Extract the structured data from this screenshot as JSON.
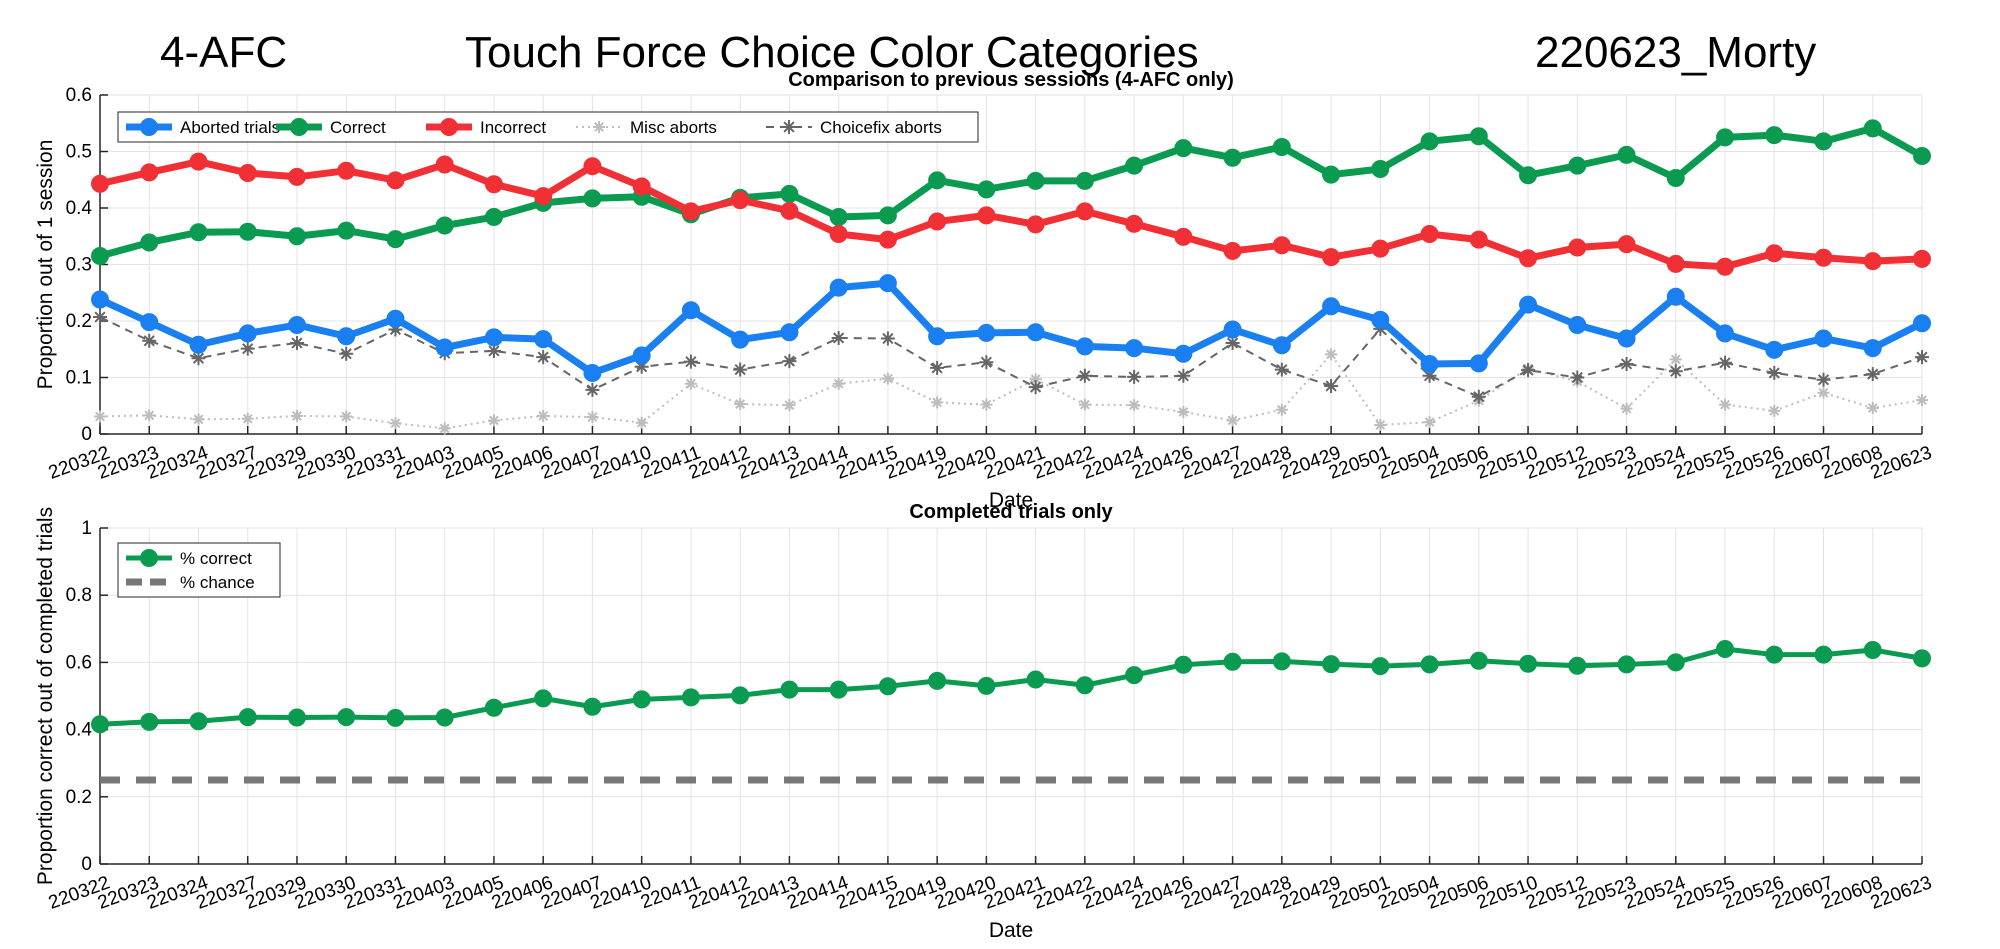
{
  "header": {
    "left": "4-AFC",
    "center": "Touch Force Choice Color Categories",
    "right": "220623_Morty"
  },
  "colors": {
    "aborted": "#1a7ff0",
    "correct": "#0a9b50",
    "incorrect": "#f03035",
    "misc": "#bdbdbd",
    "choicefix": "#666666",
    "chance": "#777777",
    "grid": "#e3e3e3"
  },
  "chart_data": [
    {
      "type": "line",
      "title": "Comparison to previous sessions (4-AFC only)",
      "xlabel": "Date",
      "ylabel": "Proportion out of 1 session",
      "ylim": [
        0,
        0.6
      ],
      "yticks": [
        "0",
        "0.1",
        "0.2",
        "0.3",
        "0.4",
        "0.5",
        "0.6"
      ],
      "grid": true,
      "legend_position": "top-left, horizontal",
      "categories": [
        "220322",
        "220323",
        "220324",
        "220327",
        "220329",
        "220330",
        "220331",
        "220403",
        "220405",
        "220406",
        "220407",
        "220410",
        "220411",
        "220412",
        "220413",
        "220414",
        "220415",
        "220419",
        "220420",
        "220421",
        "220422",
        "220424",
        "220426",
        "220427",
        "220428",
        "220429",
        "220501",
        "220504",
        "220506",
        "220510",
        "220512",
        "220523",
        "220524",
        "220525",
        "220526",
        "220607",
        "220608",
        "220623"
      ],
      "series": [
        {
          "name": "Aborted trials",
          "values": [
            0.238,
            0.198,
            0.158,
            0.178,
            0.193,
            0.173,
            0.204,
            0.153,
            0.171,
            0.168,
            0.108,
            0.139,
            0.219,
            0.167,
            0.18,
            0.259,
            0.267,
            0.173,
            0.179,
            0.18,
            0.155,
            0.152,
            0.142,
            0.185,
            0.157,
            0.226,
            0.202,
            0.124,
            0.125,
            0.229,
            0.193,
            0.169,
            0.243,
            0.178,
            0.149,
            0.169,
            0.152,
            0.196
          ]
        },
        {
          "name": "Correct",
          "values": [
            0.315,
            0.339,
            0.357,
            0.358,
            0.35,
            0.36,
            0.345,
            0.369,
            0.384,
            0.409,
            0.417,
            0.42,
            0.389,
            0.418,
            0.425,
            0.384,
            0.387,
            0.449,
            0.433,
            0.448,
            0.448,
            0.475,
            0.506,
            0.489,
            0.508,
            0.459,
            0.469,
            0.518,
            0.527,
            0.458,
            0.475,
            0.494,
            0.453,
            0.525,
            0.529,
            0.518,
            0.541,
            0.492
          ]
        },
        {
          "name": "Incorrect",
          "values": [
            0.443,
            0.463,
            0.482,
            0.462,
            0.455,
            0.466,
            0.449,
            0.477,
            0.442,
            0.421,
            0.474,
            0.438,
            0.394,
            0.414,
            0.395,
            0.354,
            0.344,
            0.376,
            0.387,
            0.371,
            0.394,
            0.372,
            0.349,
            0.324,
            0.334,
            0.313,
            0.328,
            0.354,
            0.344,
            0.311,
            0.33,
            0.336,
            0.301,
            0.296,
            0.32,
            0.312,
            0.306,
            0.31
          ]
        },
        {
          "name": "Misc aborts",
          "values": [
            0.031,
            0.033,
            0.026,
            0.027,
            0.032,
            0.031,
            0.019,
            0.01,
            0.024,
            0.032,
            0.03,
            0.02,
            0.089,
            0.053,
            0.051,
            0.089,
            0.098,
            0.056,
            0.052,
            0.097,
            0.052,
            0.051,
            0.039,
            0.024,
            0.043,
            0.141,
            0.016,
            0.021,
            0.059,
            0.116,
            0.093,
            0.045,
            0.132,
            0.052,
            0.041,
            0.073,
            0.046,
            0.06
          ]
        },
        {
          "name": "Choicefix aborts",
          "values": [
            0.207,
            0.165,
            0.134,
            0.151,
            0.161,
            0.142,
            0.185,
            0.143,
            0.147,
            0.136,
            0.078,
            0.119,
            0.128,
            0.114,
            0.129,
            0.17,
            0.169,
            0.117,
            0.127,
            0.083,
            0.103,
            0.101,
            0.103,
            0.161,
            0.114,
            0.085,
            0.186,
            0.103,
            0.066,
            0.113,
            0.1,
            0.124,
            0.111,
            0.126,
            0.108,
            0.096,
            0.106,
            0.136
          ]
        }
      ]
    },
    {
      "type": "line",
      "title": "Completed trials only",
      "xlabel": "Date",
      "ylabel": "Proportion correct out of completed trials",
      "ylim": [
        0,
        1
      ],
      "yticks": [
        "0",
        "0.2",
        "0.4",
        "0.6",
        "0.8",
        "1"
      ],
      "grid": true,
      "legend_position": "top-left, vertical",
      "categories": [
        "220322",
        "220323",
        "220324",
        "220327",
        "220329",
        "220330",
        "220331",
        "220403",
        "220405",
        "220406",
        "220407",
        "220410",
        "220411",
        "220412",
        "220413",
        "220414",
        "220415",
        "220419",
        "220420",
        "220421",
        "220422",
        "220424",
        "220426",
        "220427",
        "220428",
        "220429",
        "220501",
        "220504",
        "220506",
        "220510",
        "220512",
        "220523",
        "220524",
        "220525",
        "220526",
        "220607",
        "220608",
        "220623"
      ],
      "series": [
        {
          "name": "% correct",
          "values": [
            0.416,
            0.423,
            0.425,
            0.437,
            0.436,
            0.437,
            0.435,
            0.436,
            0.465,
            0.493,
            0.468,
            0.49,
            0.496,
            0.502,
            0.519,
            0.519,
            0.529,
            0.545,
            0.53,
            0.549,
            0.532,
            0.562,
            0.593,
            0.602,
            0.603,
            0.595,
            0.589,
            0.594,
            0.605,
            0.596,
            0.59,
            0.594,
            0.6,
            0.64,
            0.623,
            0.623,
            0.637,
            0.612
          ]
        },
        {
          "name": "% chance",
          "values": [
            0.25,
            0.25,
            0.25,
            0.25,
            0.25,
            0.25,
            0.25,
            0.25,
            0.25,
            0.25,
            0.25,
            0.25,
            0.25,
            0.25,
            0.25,
            0.25,
            0.25,
            0.25,
            0.25,
            0.25,
            0.25,
            0.25,
            0.25,
            0.25,
            0.25,
            0.25,
            0.25,
            0.25,
            0.25,
            0.25,
            0.25,
            0.25,
            0.25,
            0.25,
            0.25,
            0.25,
            0.25,
            0.25
          ]
        }
      ]
    }
  ]
}
